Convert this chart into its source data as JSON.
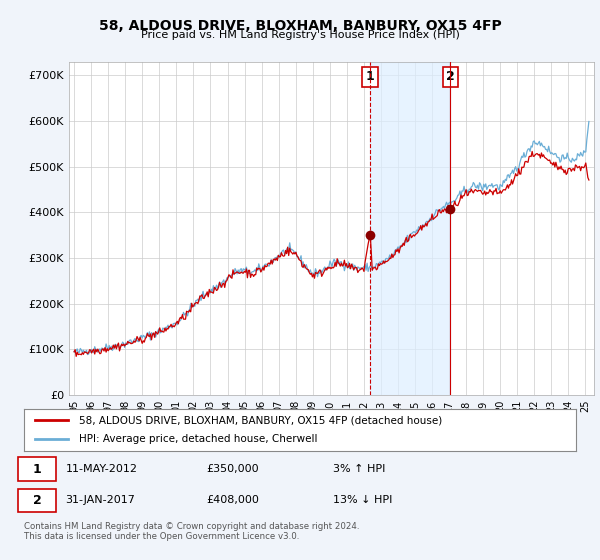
{
  "title": "58, ALDOUS DRIVE, BLOXHAM, BANBURY, OX15 4FP",
  "subtitle": "Price paid vs. HM Land Registry's House Price Index (HPI)",
  "ylabel_ticks": [
    "£0",
    "£100K",
    "£200K",
    "£300K",
    "£400K",
    "£500K",
    "£600K",
    "£700K"
  ],
  "ytick_vals": [
    0,
    100000,
    200000,
    300000,
    400000,
    500000,
    600000,
    700000
  ],
  "ylim": [
    0,
    730000
  ],
  "purchase1_x": 2012.37,
  "purchase1_y": 350000,
  "purchase2_x": 2017.08,
  "purchase2_y": 408000,
  "hpi_color": "#6baed6",
  "price_color": "#cc0000",
  "vline1_color": "#cc0000",
  "vline1_style": "--",
  "vline2_color": "#cc0000",
  "vline2_style": "-",
  "span_color": "#ddeeff",
  "legend1_label": "58, ALDOUS DRIVE, BLOXHAM, BANBURY, OX15 4FP (detached house)",
  "legend2_label": "HPI: Average price, detached house, Cherwell",
  "note1_date": "11-MAY-2012",
  "note1_price": "£350,000",
  "note1_hpi": "3% ↑ HPI",
  "note2_date": "31-JAN-2017",
  "note2_price": "£408,000",
  "note2_hpi": "13% ↓ HPI",
  "footer": "Contains HM Land Registry data © Crown copyright and database right 2024.\nThis data is licensed under the Open Government Licence v3.0.",
  "background_color": "#f0f4fa",
  "plot_bg_color": "#ffffff",
  "xtick_labels": [
    "95",
    "96",
    "97",
    "98",
    "99",
    "00",
    "01",
    "02",
    "03",
    "04",
    "05",
    "06",
    "07",
    "08",
    "09",
    "10",
    "11",
    "12",
    "13",
    "14",
    "15",
    "16",
    "17",
    "18",
    "19",
    "20",
    "21",
    "22",
    "23",
    "24",
    "25"
  ],
  "xtick_years": [
    1995,
    1996,
    1997,
    1998,
    1999,
    2000,
    2001,
    2002,
    2003,
    2004,
    2005,
    2006,
    2007,
    2008,
    2009,
    2010,
    2011,
    2012,
    2013,
    2014,
    2015,
    2016,
    2017,
    2018,
    2019,
    2020,
    2021,
    2022,
    2023,
    2024,
    2025
  ]
}
